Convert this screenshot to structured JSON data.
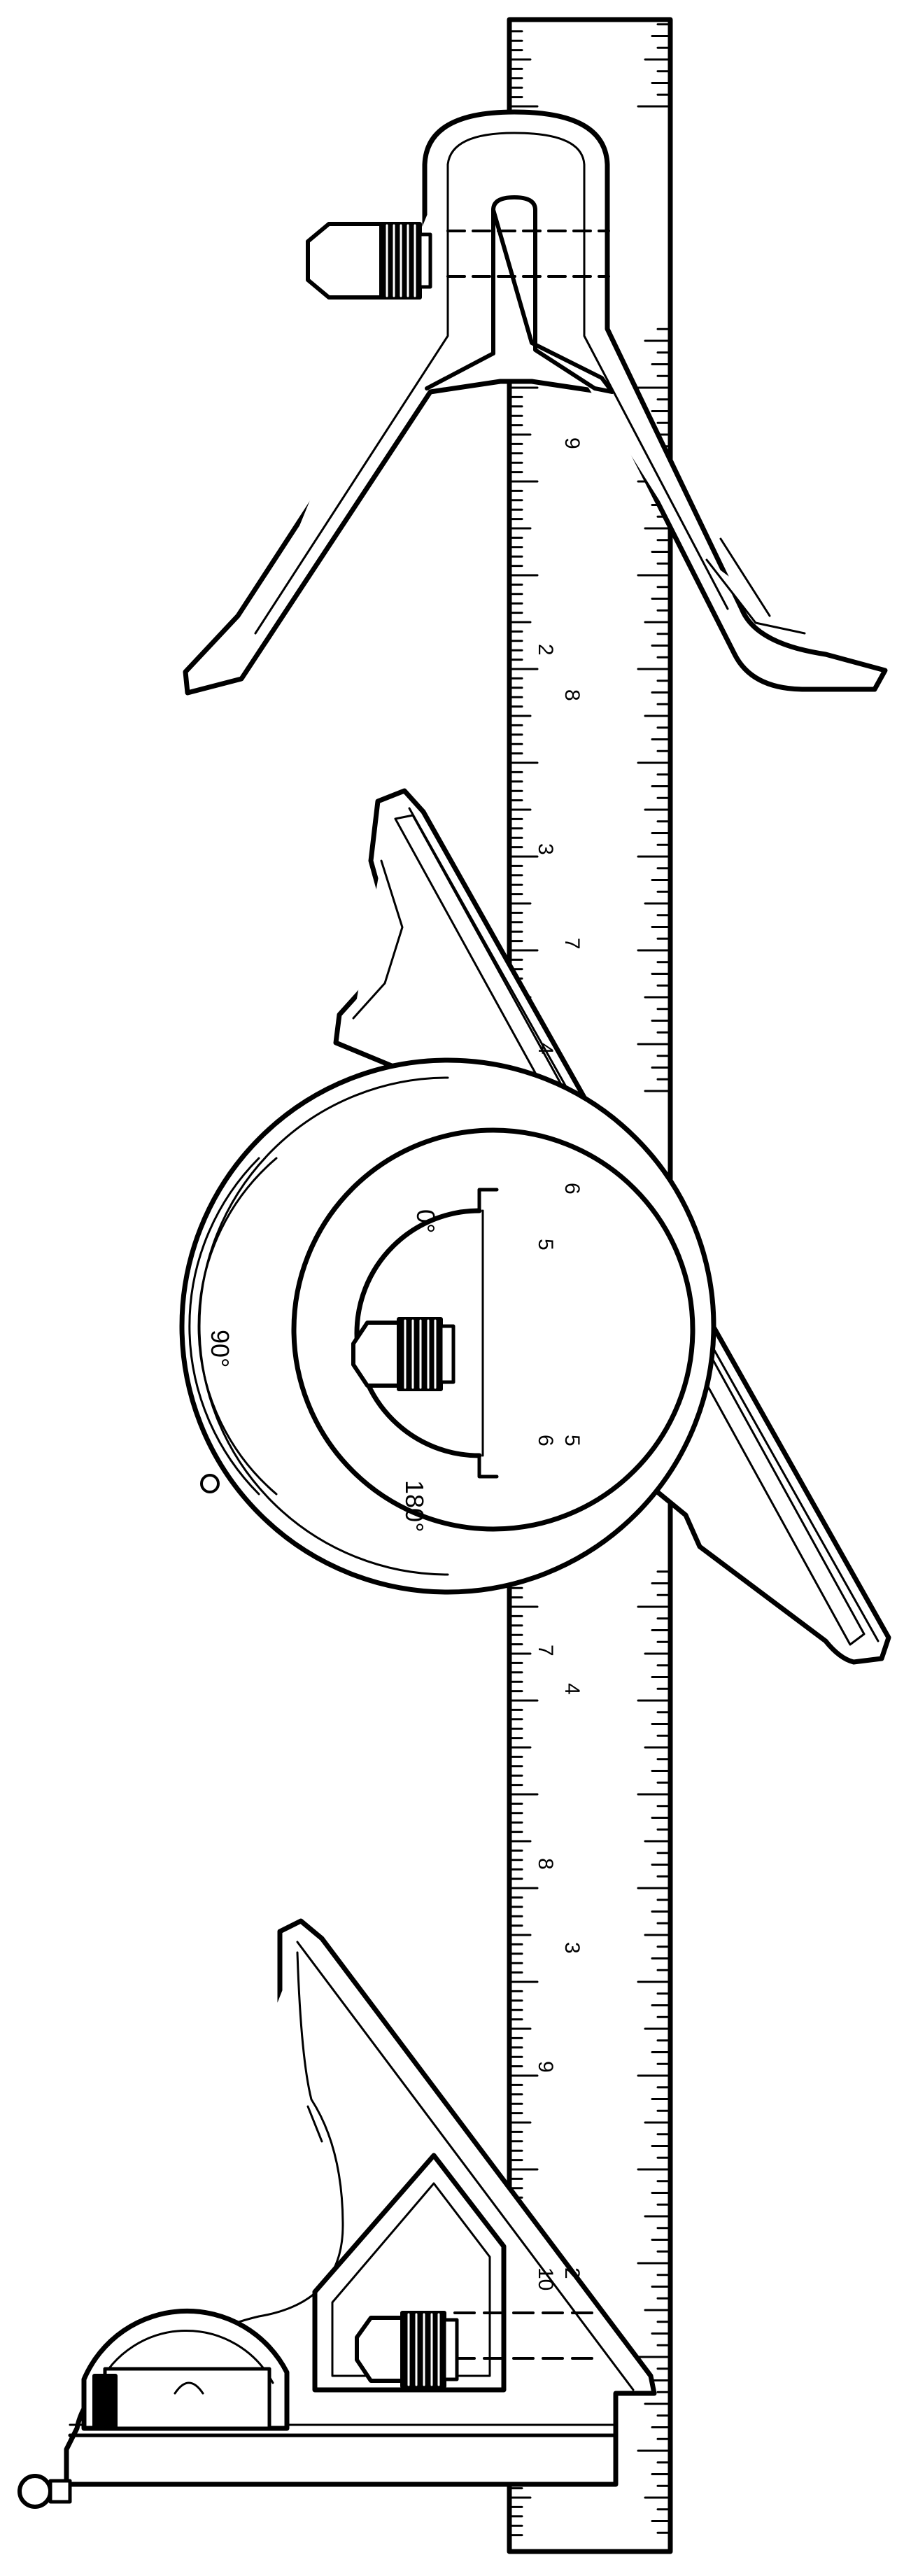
{
  "figure": {
    "subject": "combination square set",
    "ink_color": "#000000",
    "paper_color": "#ffffff"
  },
  "rule": {
    "inch_labels": [
      "10",
      "9",
      "8",
      "7",
      "6",
      "5",
      "4",
      "3",
      "2"
    ],
    "cm_labels": [
      "2",
      "3",
      "4",
      "5",
      "6",
      "7",
      "8",
      "9"
    ]
  },
  "protractor": {
    "degree_labels": [
      "0°",
      "90°",
      "180°"
    ]
  },
  "parts": [
    "center-head",
    "protractor-head",
    "square-head",
    "steel-rule"
  ]
}
